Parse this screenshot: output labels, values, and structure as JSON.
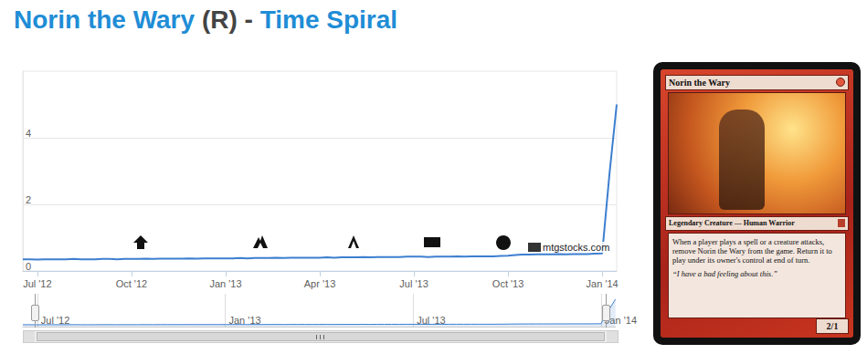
{
  "header": {
    "name": "Norin the Wary",
    "rarity": "(R)",
    "separator": "-",
    "set": "Time Spiral"
  },
  "chart_data": [
    {
      "type": "line",
      "categories": [
        null,
        null,
        "Jul '12",
        null,
        null,
        null,
        null,
        null,
        null,
        null,
        null,
        null,
        null,
        null,
        null,
        "Oct '12",
        null,
        null,
        null,
        null,
        null,
        null,
        null,
        null,
        null,
        null,
        null,
        null,
        "Jan '13",
        null,
        null,
        null,
        null,
        null,
        null,
        null,
        null,
        null,
        null,
        null,
        null,
        "Apr '13",
        null,
        null,
        null,
        null,
        null,
        null,
        null,
        null,
        null,
        null,
        null,
        null,
        "Jul '13",
        null,
        null,
        null,
        null,
        null,
        null,
        null,
        null,
        null,
        null,
        null,
        null,
        "Oct '13",
        null,
        null,
        null,
        null,
        null,
        null,
        null,
        null,
        null,
        null,
        null,
        null,
        "Jan '14",
        null,
        null
      ],
      "values": [
        0.35,
        0.35,
        0.34,
        0.35,
        0.35,
        0.35,
        0.35,
        0.36,
        0.35,
        0.35,
        0.35,
        0.36,
        0.36,
        0.35,
        0.36,
        0.36,
        0.36,
        0.37,
        0.36,
        0.37,
        0.37,
        0.37,
        0.37,
        0.38,
        0.37,
        0.38,
        0.38,
        0.38,
        0.38,
        0.38,
        0.39,
        0.38,
        0.39,
        0.39,
        0.39,
        0.4,
        0.39,
        0.4,
        0.4,
        0.4,
        0.4,
        0.4,
        0.41,
        0.4,
        0.41,
        0.41,
        0.41,
        0.42,
        0.41,
        0.42,
        0.42,
        0.42,
        0.42,
        0.43,
        0.43,
        0.43,
        0.42,
        0.43,
        0.43,
        0.43,
        0.44,
        0.43,
        0.44,
        0.44,
        0.44,
        0.44,
        0.45,
        0.46,
        0.48,
        0.49,
        0.49,
        0.5,
        0.5,
        0.5,
        0.51,
        0.5,
        0.51,
        0.51,
        0.51,
        0.52,
        0.53,
        2.9,
        5.0
      ],
      "color": "#3d7fd0",
      "ylim": [
        0,
        6
      ],
      "yticks": [
        0,
        2,
        4
      ],
      "grid": true,
      "watermark": "mtgstocks.com"
    },
    {
      "type": "area",
      "categories": [
        null,
        null,
        "Jul '12",
        null,
        null,
        null,
        null,
        null,
        null,
        null,
        null,
        null,
        null,
        null,
        null,
        null,
        null,
        null,
        null,
        null,
        null,
        null,
        null,
        null,
        null,
        null,
        null,
        null,
        "Jan '13",
        null,
        null,
        null,
        null,
        null,
        null,
        null,
        null,
        null,
        null,
        null,
        null,
        null,
        null,
        null,
        null,
        null,
        null,
        null,
        null,
        null,
        null,
        null,
        null,
        null,
        "Jul '13",
        null,
        null,
        null,
        null,
        null,
        null,
        null,
        null,
        null,
        null,
        null,
        null,
        null,
        null,
        null,
        null,
        null,
        null,
        null,
        null,
        null,
        null,
        null,
        null,
        null,
        "Jan '14",
        null,
        null
      ],
      "values": [
        0.35,
        0.35,
        0.34,
        0.35,
        0.35,
        0.35,
        0.35,
        0.36,
        0.35,
        0.35,
        0.35,
        0.36,
        0.36,
        0.35,
        0.36,
        0.36,
        0.36,
        0.37,
        0.36,
        0.37,
        0.37,
        0.37,
        0.37,
        0.38,
        0.37,
        0.38,
        0.38,
        0.38,
        0.38,
        0.38,
        0.39,
        0.38,
        0.39,
        0.39,
        0.39,
        0.4,
        0.39,
        0.4,
        0.4,
        0.4,
        0.4,
        0.4,
        0.41,
        0.4,
        0.41,
        0.41,
        0.41,
        0.42,
        0.41,
        0.42,
        0.42,
        0.42,
        0.42,
        0.43,
        0.43,
        0.43,
        0.42,
        0.43,
        0.43,
        0.43,
        0.44,
        0.43,
        0.44,
        0.44,
        0.44,
        0.44,
        0.45,
        0.46,
        0.48,
        0.49,
        0.49,
        0.5,
        0.5,
        0.5,
        0.51,
        0.5,
        0.51,
        0.51,
        0.51,
        0.52,
        0.53,
        2.9,
        5.0
      ],
      "color": "#3d7fd0",
      "ylim": [
        0,
        6
      ],
      "tick_labels": "x",
      "grid": true
    }
  ],
  "card": {
    "name": "Norin the Wary",
    "type_line": "Legendary Creature — Human Warrior",
    "rules": "When a player plays a spell or a creature attacks, remove Norin the Wary from the game. Return it to play under its owner's control at end of turn.",
    "flavor": "“I have a bad feeling about this.”",
    "pt": "2/1"
  }
}
